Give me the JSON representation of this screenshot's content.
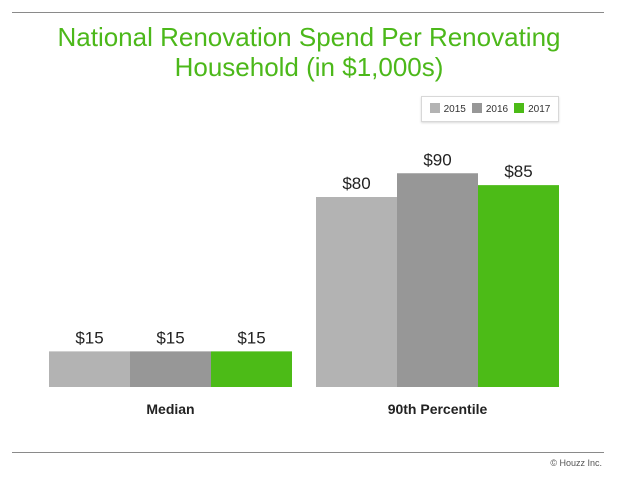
{
  "chart_data": {
    "type": "bar",
    "title": "National Renovation Spend Per Renovating Household (in $1,000s)",
    "title_lines": [
      "National Renovation Spend Per Renovating",
      "Household (in $1,000s)"
    ],
    "categories": [
      "Median",
      "90th Percentile"
    ],
    "series": [
      {
        "name": "2015",
        "color": "#b3b3b3",
        "values": [
          15,
          80
        ],
        "labels": [
          "$15",
          "$80"
        ]
      },
      {
        "name": "2016",
        "color": "#979797",
        "values": [
          15,
          90
        ],
        "labels": [
          "$15",
          "$90"
        ]
      },
      {
        "name": "2017",
        "color": "#4cbb17",
        "values": [
          15,
          85
        ],
        "labels": [
          "$15",
          "$85"
        ]
      }
    ],
    "xlabel": "",
    "ylabel": "",
    "ylim": [
      0,
      90
    ],
    "grid": false,
    "legend": "top-right"
  },
  "footer": {
    "copyright": "© Houzz Inc."
  }
}
